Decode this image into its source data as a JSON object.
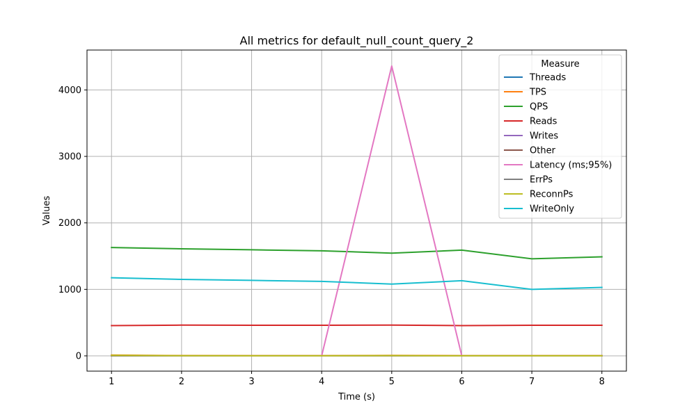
{
  "chart_data": {
    "type": "line",
    "title": "All metrics for default_null_count_query_2",
    "xlabel": "Time (s)",
    "ylabel": "Values",
    "x": [
      1,
      2,
      3,
      4,
      5,
      6,
      7,
      8
    ],
    "xlim": [
      0.65,
      8.35
    ],
    "ylim": [
      -230,
      4600
    ],
    "xticks": [
      1,
      2,
      3,
      4,
      5,
      6,
      7,
      8
    ],
    "yticks": [
      0,
      1000,
      2000,
      3000,
      4000
    ],
    "grid": true,
    "legend": {
      "title": "Measure",
      "placement": "top-right"
    },
    "series": [
      {
        "name": "Threads",
        "color": "#1f77b4",
        "values": [
          1,
          1,
          1,
          1,
          1,
          1,
          1,
          1
        ]
      },
      {
        "name": "TPS",
        "color": "#ff7f0e",
        "values": [
          12,
          4,
          3,
          3,
          6,
          3,
          3,
          3
        ]
      },
      {
        "name": "QPS",
        "color": "#2ca02c",
        "values": [
          1630,
          1610,
          1595,
          1580,
          1545,
          1590,
          1460,
          1490
        ]
      },
      {
        "name": "Reads",
        "color": "#d62728",
        "values": [
          455,
          462,
          460,
          460,
          462,
          455,
          460,
          460
        ]
      },
      {
        "name": "Writes",
        "color": "#9467bd",
        "values": [
          0,
          0,
          0,
          0,
          0,
          0,
          0,
          0
        ]
      },
      {
        "name": "Other",
        "color": "#8c564b",
        "values": [
          0,
          0,
          0,
          0,
          0,
          0,
          0,
          0
        ]
      },
      {
        "name": "Latency (ms;95%)",
        "color": "#e377c2",
        "values": [
          0,
          0,
          0,
          0,
          4360,
          0,
          0,
          0
        ]
      },
      {
        "name": "ErrPs",
        "color": "#7f7f7f",
        "values": [
          0,
          0,
          0,
          0,
          0,
          0,
          0,
          0
        ]
      },
      {
        "name": "ReconnPs",
        "color": "#bcbd22",
        "values": [
          8,
          2,
          1,
          1,
          4,
          1,
          1,
          1
        ]
      },
      {
        "name": "WriteOnly",
        "color": "#17becf",
        "values": [
          1175,
          1150,
          1135,
          1120,
          1080,
          1130,
          1000,
          1030
        ]
      }
    ]
  }
}
